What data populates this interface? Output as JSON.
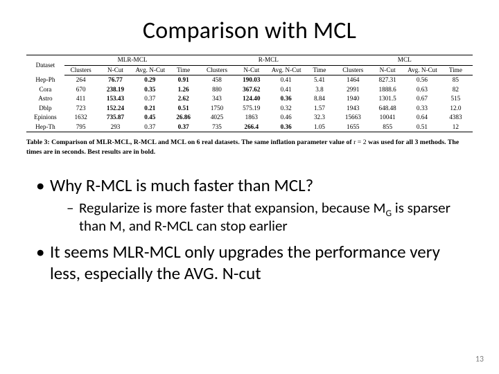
{
  "title": "Comparison with MCL",
  "table": {
    "header1": {
      "dataset": "Dataset",
      "mlr": "MLR-MCL",
      "r": "R-MCL",
      "mcl": "MCL"
    },
    "header2": [
      "Clusters",
      "N-Cut",
      "Avg. N-Cut",
      "Time",
      "Clusters",
      "N-Cut",
      "Avg. N-Cut",
      "Time",
      "Clusters",
      "N-Cut",
      "Avg. N-Cut",
      "Time"
    ],
    "rows": [
      {
        "ds": "Hep-Ph",
        "c": [
          "264",
          "76.77",
          "0.29",
          "0.91",
          "458",
          "190.03",
          "0.41",
          "5.41",
          "1464",
          "827.31",
          "0.56",
          "85"
        ],
        "bold": [
          1,
          2,
          3,
          5
        ]
      },
      {
        "ds": "Cora",
        "c": [
          "670",
          "238.19",
          "0.35",
          "1.26",
          "880",
          "367.62",
          "0.41",
          "3.8",
          "2991",
          "1888.6",
          "0.63",
          "82"
        ],
        "bold": [
          1,
          2,
          3,
          5
        ]
      },
      {
        "ds": "Astro",
        "c": [
          "411",
          "153.43",
          "0.37",
          "2.62",
          "343",
          "124.40",
          "0.36",
          "8.84",
          "1940",
          "1301.5",
          "0.67",
          "515"
        ],
        "bold": [
          1,
          3,
          5,
          6
        ]
      },
      {
        "ds": "Dblp",
        "c": [
          "723",
          "152.24",
          "0.21",
          "0.51",
          "1750",
          "575.19",
          "0.32",
          "1.57",
          "1943",
          "648.48",
          "0.33",
          "12.0"
        ],
        "bold": [
          1,
          2,
          3
        ]
      },
      {
        "ds": "Epinions",
        "c": [
          "1632",
          "735.87",
          "0.45",
          "26.86",
          "4025",
          "1863",
          "0.46",
          "32.3",
          "15663",
          "10041",
          "0.64",
          "4383"
        ],
        "bold": [
          1,
          2,
          3
        ]
      },
      {
        "ds": "Hep-Th",
        "c": [
          "795",
          "293",
          "0.37",
          "0.37",
          "735",
          "266.4",
          "0.36",
          "1.05",
          "1655",
          "855",
          "0.51",
          "12"
        ],
        "bold": [
          3,
          5,
          6
        ]
      }
    ]
  },
  "caption": {
    "lead": "Table 3:",
    "bold": "Comparison of MLR-MCL, R-MCL and MCL on 6 real datasets. The same inflation parameter value of",
    "mid": "r = 2",
    "tail": "was used for all 3 methods. The times are in seconds. Best results are in bold."
  },
  "bullets": {
    "b1": "Why R-MCL is much faster than MCL?",
    "b1s1_a": "Regularize is more faster that expansion, because M",
    "b1s1_sub": "G",
    "b1s1_b": " is sparser than M, and R-MCL can stop earlier",
    "b2": "It seems MLR-MCL only upgrades the performance very less, especially the AVG. N-cut"
  },
  "footer": "13"
}
